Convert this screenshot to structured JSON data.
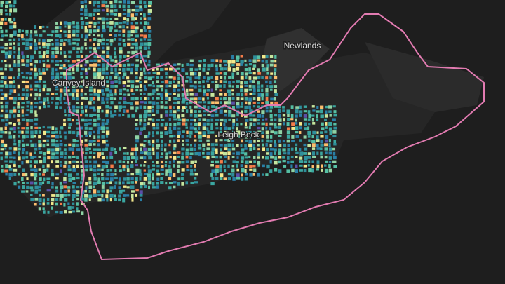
{
  "labels": {
    "newlands": "Newlands",
    "canvey_island": "Canvey Island",
    "leigh_beck": "Leigh Beck"
  }
}
